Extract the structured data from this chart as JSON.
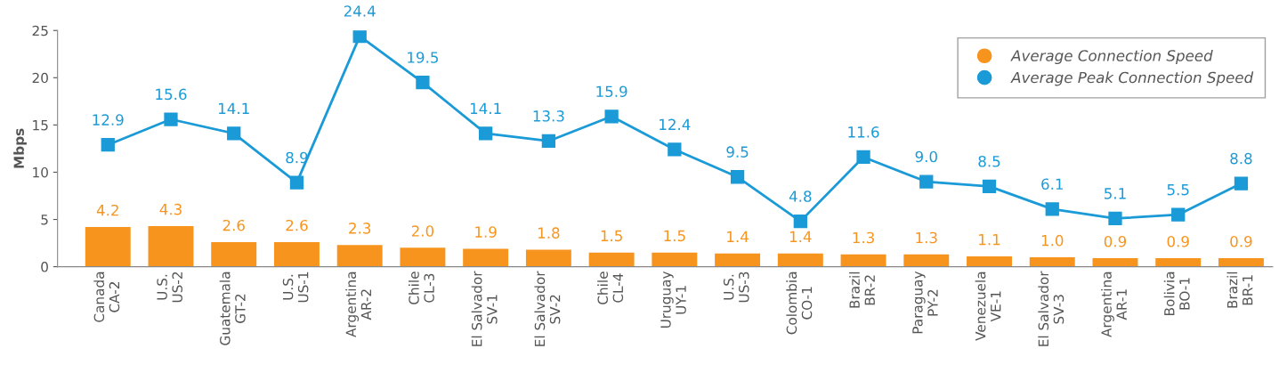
{
  "chart_data": {
    "type": "bar",
    "ylabel": "Mbps",
    "categories": [
      "Canada\nCA-2",
      "U.S.\nUS-2",
      "Guatemala\nGT-2",
      "U.S.\nUS-1",
      "Argentina\nAR-2",
      "Chile\nCL-3",
      "El Salvador\nSV-1",
      "El Salvador\nSV-2",
      "Chile\nCL-4",
      "Uruguay\nUY-1",
      "U.S.\nUS-3",
      "Colombia\nCO-1",
      "Brazil\nBR-2",
      "Paraguay\nPY-2",
      "Venezuela\nVE-1",
      "El Salvador\nSV-3",
      "Argentina\nAR-1",
      "Bolivia\nBO-1",
      "Brazil\nBR-1"
    ],
    "series": [
      {
        "name": "Average Connection Speed",
        "color": "#f7941d",
        "values": [
          4.2,
          4.3,
          2.6,
          2.6,
          2.3,
          2.0,
          1.9,
          1.8,
          1.5,
          1.5,
          1.4,
          1.4,
          1.3,
          1.3,
          1.1,
          1.0,
          0.9,
          0.9,
          0.9
        ],
        "value_labels": [
          "4.2",
          "4.3",
          "2.6",
          "2.6",
          "2.3",
          "2.0",
          "1.9",
          "1.8",
          "1.5",
          "1.5",
          "1.4",
          "1.4",
          "1.3",
          "1.3",
          "1.1",
          "1.0",
          "0.9",
          "0.9",
          "0.9"
        ]
      },
      {
        "name": "Average Peak Connection Speed",
        "type": "line",
        "color": "#1a9ad6",
        "marker": "square",
        "values": [
          12.9,
          15.6,
          14.1,
          8.9,
          24.4,
          19.5,
          14.1,
          13.3,
          15.9,
          12.4,
          9.5,
          4.8,
          11.6,
          9.0,
          8.5,
          6.1,
          5.1,
          5.5,
          8.8
        ],
        "value_labels": [
          "12.9",
          "15.6",
          "14.1",
          "8.9",
          "24.4",
          "19.5",
          "14.1",
          "13.3",
          "15.9",
          "12.4",
          "9.5",
          "4.8",
          "11.6",
          "9.0",
          "8.5",
          "6.1",
          "5.1",
          "5.5",
          "8.8"
        ]
      }
    ],
    "ylim": [
      0,
      25
    ],
    "yticks": [
      0,
      5,
      10,
      15,
      20,
      25
    ],
    "grid": false,
    "legend": "top right"
  }
}
